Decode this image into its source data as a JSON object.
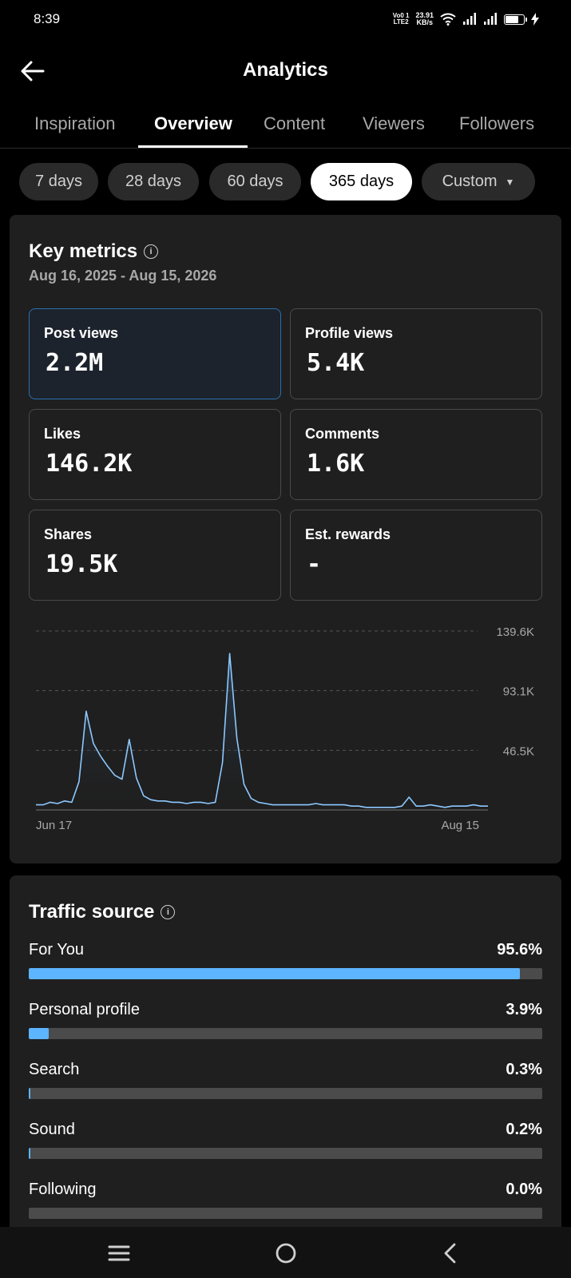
{
  "status": {
    "time": "8:39",
    "volte": [
      "Vo0 1",
      "LTE2"
    ],
    "net_speed": [
      "23.91",
      "KB/s"
    ]
  },
  "header": {
    "title": "Analytics",
    "back_icon": "arrow-left-icon"
  },
  "tabs": [
    {
      "label": "Inspiration",
      "active": false
    },
    {
      "label": "Overview",
      "active": true
    },
    {
      "label": "Content",
      "active": false
    },
    {
      "label": "Viewers",
      "active": false
    },
    {
      "label": "Followers",
      "active": false
    }
  ],
  "ranges": [
    {
      "label": "7 days",
      "active": false
    },
    {
      "label": "28 days",
      "active": false
    },
    {
      "label": "60 days",
      "active": false
    },
    {
      "label": "365 days",
      "active": true
    },
    {
      "label": "Custom",
      "active": false
    }
  ],
  "key_metrics": {
    "title": "Key metrics",
    "date_range": "Aug 16, 2025 - Aug 15, 2026",
    "items": [
      {
        "label": "Post views",
        "value": "2.2M",
        "selected": true
      },
      {
        "label": "Profile views",
        "value": "5.4K",
        "selected": false
      },
      {
        "label": "Likes",
        "value": "146.2K",
        "selected": false
      },
      {
        "label": "Comments",
        "value": "1.6K",
        "selected": false
      },
      {
        "label": "Shares",
        "value": "19.5K",
        "selected": false
      },
      {
        "label": "Est. rewards",
        "value": "-",
        "selected": false
      }
    ]
  },
  "chart_data": {
    "type": "area",
    "title": "",
    "xlabel": "",
    "ylabel": "",
    "x_tick_labels": [
      "Jun 17",
      "Aug 15"
    ],
    "y_tick_labels": [
      "139.6K",
      "93.1K",
      "46.5K"
    ],
    "ylim": [
      0,
      139.6
    ],
    "y_unit": "K",
    "grid": "dashed horizontal",
    "series": [
      {
        "values": [
          4,
          4,
          6,
          5,
          7,
          6,
          22,
          77,
          52,
          42,
          34,
          27,
          24,
          55,
          25,
          11,
          8,
          7,
          7,
          6,
          6,
          5,
          6,
          6,
          5,
          6,
          37,
          122,
          56,
          20,
          9,
          6,
          5,
          4,
          4,
          4,
          4,
          4,
          4,
          5,
          4,
          4,
          4,
          4,
          3,
          3,
          2,
          2,
          2,
          2,
          2,
          3,
          10,
          3,
          3,
          4,
          3,
          2,
          3,
          3,
          3,
          4,
          3,
          3
        ]
      }
    ],
    "line_color": "#8cc8ff"
  },
  "traffic_source": {
    "title": "Traffic source",
    "items": [
      {
        "label": "For You",
        "pct_label": "95.6%",
        "pct": 95.6
      },
      {
        "label": "Personal profile",
        "pct_label": "3.9%",
        "pct": 3.9
      },
      {
        "label": "Search",
        "pct_label": "0.3%",
        "pct": 0.3
      },
      {
        "label": "Sound",
        "pct_label": "0.2%",
        "pct": 0.2
      },
      {
        "label": "Following",
        "pct_label": "0.0%",
        "pct": 0.0
      }
    ]
  },
  "nav": {
    "recents_icon": "menu-icon",
    "home_icon": "circle-home-icon",
    "back_icon": "chevron-left-icon"
  }
}
